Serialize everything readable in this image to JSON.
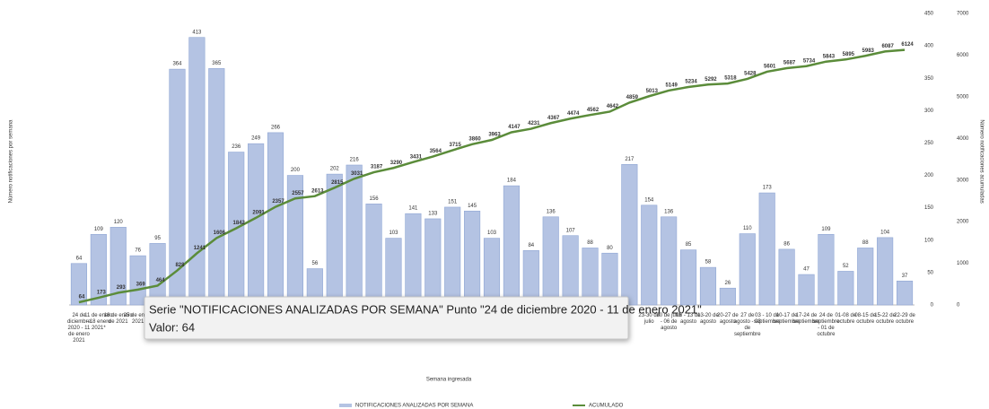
{
  "chart_data": {
    "type": "bar",
    "x_label": "Semana ingresada",
    "y_label": "Número notificaciones por semana",
    "y2_label": "Número notificaciones acumuladas",
    "categories": [
      "24 de diciembre 2020 - 11 de enero 2021",
      "11 de enero - 18 enero 2021*",
      "18 de enero de 2021",
      "25 de enero 2021",
      null,
      null,
      null,
      null,
      null,
      null,
      null,
      null,
      null,
      null,
      null,
      null,
      null,
      null,
      null,
      null,
      null,
      null,
      null,
      null,
      null,
      null,
      null,
      null,
      null,
      "23-30 de julio",
      "30 de julio - 06 de agosto",
      "06 - 13 de agosto",
      "13-20 de agosto",
      "20-27 de agosto",
      "27 de agosto - 03 de septiembre",
      "03 - 10 de septiembre",
      "10-17 de septiembre",
      "17-24 de septiembre",
      "24 de septiembre - 01 de octubre",
      "01-08 de octubre",
      "08-15 de octubre",
      "15-22 de octubre",
      "22-29 de octubre"
    ],
    "series": [
      {
        "name": "NOTIFICACIONES ANALIZADAS POR SEMANA",
        "color": "#b4c3e3",
        "values": [
          64,
          109,
          120,
          76,
          95,
          364,
          413,
          365,
          236,
          249,
          266,
          200,
          56,
          202,
          216,
          156,
          103,
          141,
          133,
          151,
          145,
          103,
          184,
          84,
          136,
          107,
          88,
          80,
          217,
          154,
          136,
          85,
          58,
          26,
          110,
          173,
          86,
          47,
          109,
          52,
          88,
          104,
          37
        ]
      },
      {
        "name": "ACUMULADO",
        "color": "#5b8c3a",
        "axis": "y2",
        "type": "line",
        "values": [
          64,
          173,
          293,
          369,
          464,
          828,
          1241,
          1606,
          1842,
          2091,
          2357,
          2557,
          2613,
          2815,
          3031,
          3187,
          3290,
          3431,
          3564,
          3715,
          3860,
          3963,
          4147,
          4231,
          4367,
          4474,
          4562,
          4642,
          4859,
          5013,
          5149,
          5234,
          5292,
          5318,
          5428,
          5601,
          5687,
          5734,
          5843,
          5895,
          5983,
          6087,
          6124
        ]
      }
    ],
    "ylim": [
      0,
      450
    ],
    "yticks": [
      0,
      50,
      100,
      150,
      200,
      250,
      300,
      350,
      400,
      450
    ],
    "y2lim": [
      0,
      7000
    ],
    "y2ticks": [
      0,
      1000,
      2000,
      3000,
      4000,
      5000,
      6000,
      7000
    ],
    "tooltip": {
      "line1": "Serie \"NOTIFICACIONES ANALIZADAS POR SEMANA\" Punto \"24 de diciembre 2020 - 11 de enero 2021\"",
      "line2": "Valor: 64"
    }
  }
}
